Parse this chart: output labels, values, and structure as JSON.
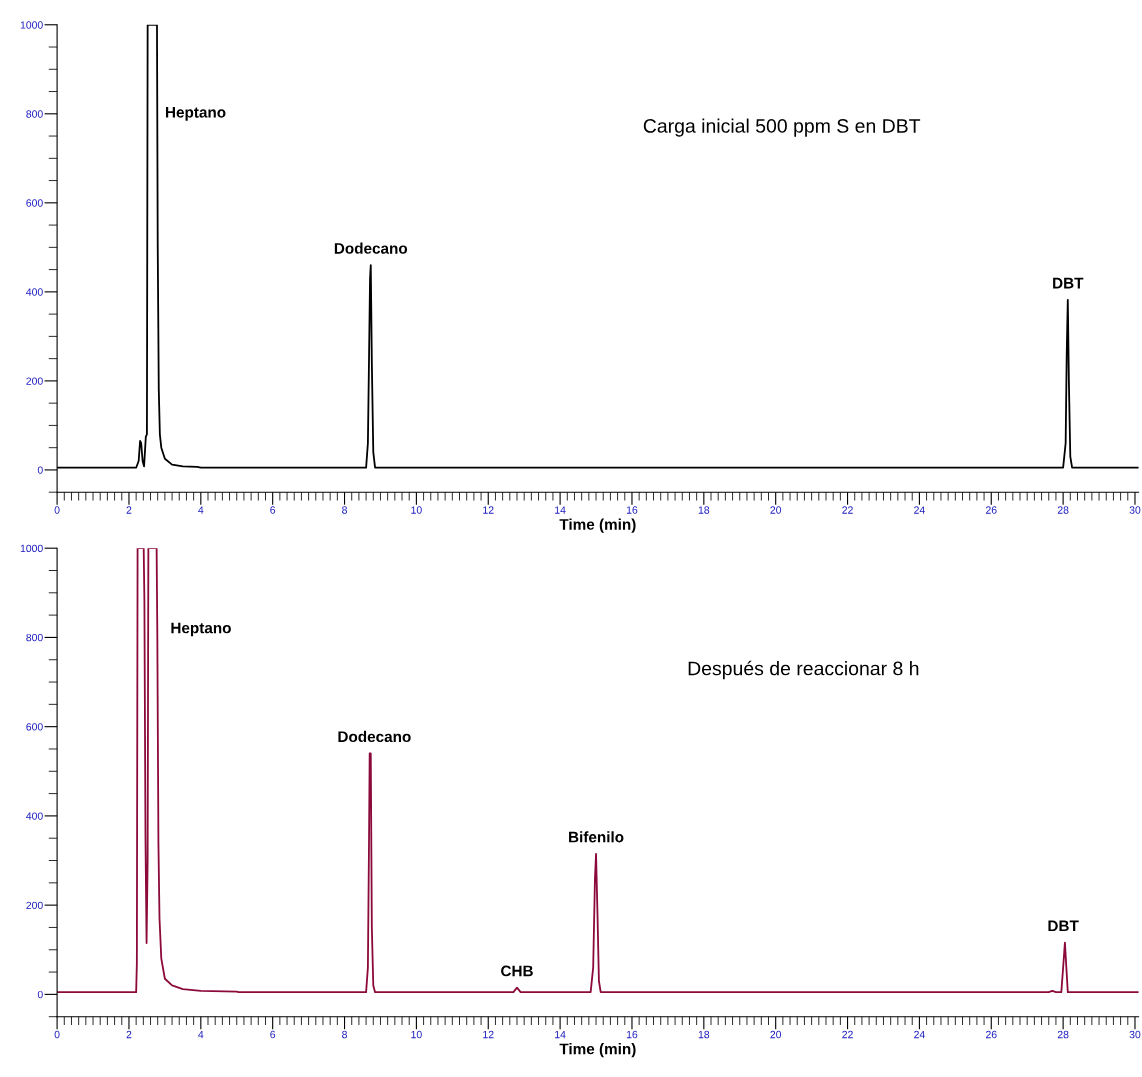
{
  "chart_data": [
    {
      "type": "line",
      "xlabel": "Time (min)",
      "xlim": [
        0,
        30.1
      ],
      "ylim": [
        -50,
        1000
      ],
      "xticks": [
        0,
        2,
        4,
        6,
        8,
        10,
        12,
        14,
        16,
        18,
        20,
        22,
        24,
        26,
        28,
        30
      ],
      "yticks": [
        0,
        200,
        400,
        600,
        800,
        1000
      ],
      "grid": false,
      "legend": false,
      "series": [
        {
          "color": "#000000",
          "x": [
            0,
            2.2,
            2.27,
            2.31,
            2.34,
            2.38,
            2.42,
            2.47,
            2.5,
            2.52,
            2.78,
            2.8,
            2.83,
            2.86,
            2.9,
            3.0,
            3.2,
            3.5,
            3.9,
            4.0,
            8.6,
            8.65,
            8.68,
            8.71,
            8.73,
            8.76,
            8.8,
            8.85,
            28.0,
            28.07,
            28.1,
            28.13,
            28.16,
            28.2,
            28.25,
            30.1
          ],
          "values": [
            5,
            5,
            20,
            65,
            60,
            20,
            8,
            75,
            80,
            1000,
            1000,
            510,
            180,
            80,
            50,
            25,
            12,
            8,
            7,
            5,
            5,
            60,
            240,
            430,
            460,
            240,
            40,
            5,
            5,
            60,
            260,
            382,
            200,
            30,
            5,
            5
          ]
        }
      ],
      "annotations": [
        "Carga inicial 500 ppm S en DBT",
        "Heptano",
        {
          "text": "Dodecano",
          "x": 8.73,
          "y": 460
        },
        {
          "text": "DBT",
          "x": 28.13,
          "y": 382
        }
      ]
    },
    {
      "type": "line",
      "xlabel": "Time (min)",
      "xlim": [
        0,
        30.1
      ],
      "ylim": [
        -50,
        1000
      ],
      "xticks": [
        0,
        2,
        4,
        6,
        8,
        10,
        12,
        14,
        16,
        18,
        20,
        22,
        24,
        26,
        28,
        30
      ],
      "yticks": [
        0,
        200,
        400,
        600,
        800,
        1000
      ],
      "grid": false,
      "legend": false,
      "series": [
        {
          "color": "#8b0a3a",
          "x": [
            0,
            2.2,
            2.22,
            2.24,
            2.41,
            2.43,
            2.46,
            2.49,
            2.52,
            2.54,
            2.77,
            2.79,
            2.82,
            2.85,
            2.9,
            3.0,
            3.2,
            3.5,
            4.0,
            5.0,
            5.05,
            8.6,
            8.65,
            8.68,
            8.7,
            8.73,
            8.76,
            8.8,
            8.85,
            12.7,
            12.8,
            12.9,
            14.85,
            14.92,
            14.97,
            15.0,
            15.04,
            15.08,
            15.13,
            27.6,
            27.7,
            27.8,
            27.95,
            28.0,
            28.05,
            28.09,
            28.13,
            30.1
          ],
          "values": [
            5,
            5,
            70,
            1000,
            1000,
            880,
            350,
            115,
            300,
            1000,
            1000,
            800,
            340,
            170,
            80,
            35,
            20,
            12,
            8,
            6,
            5,
            5,
            60,
            330,
            540,
            540,
            150,
            20,
            5,
            5,
            15,
            5,
            5,
            60,
            260,
            315,
            180,
            30,
            5,
            5,
            8,
            5,
            5,
            60,
            116,
            60,
            5,
            5
          ]
        }
      ],
      "annotations": [
        "Después de reaccionar 8 h",
        "Heptano",
        {
          "text": "Dodecano",
          "x": 8.83,
          "y": 540
        },
        {
          "text": "CHB",
          "x": 12.8,
          "y": 15
        },
        {
          "text": "Bifenilo",
          "x": 15.0,
          "y": 315
        },
        {
          "text": "DBT",
          "x": 28.0,
          "y": 116
        }
      ]
    }
  ]
}
